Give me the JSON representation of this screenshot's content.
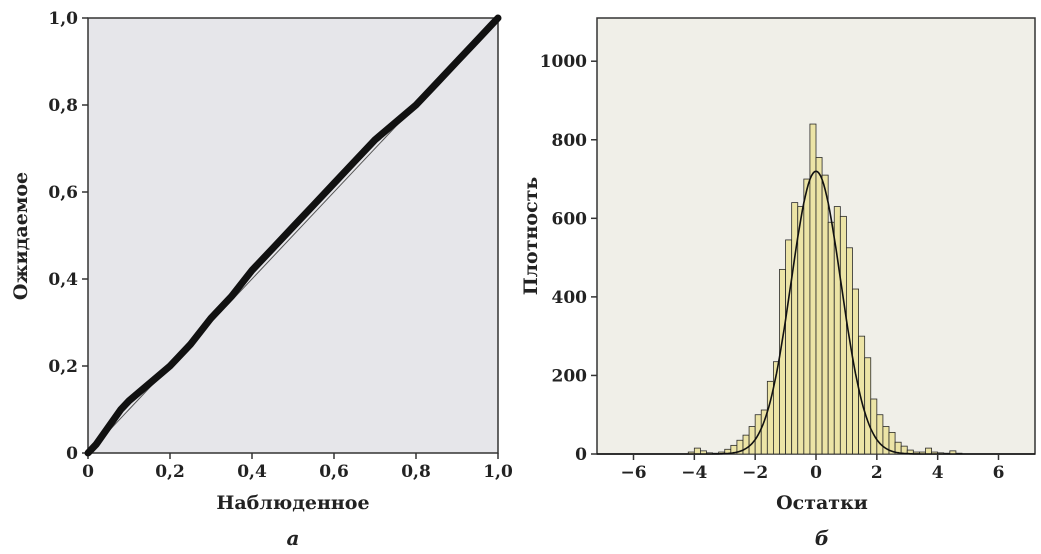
{
  "colors": {
    "plot_bg_left": "#e6e6ea",
    "plot_bg_right": "#f0efe8",
    "bar_fill": "#ece4a6",
    "bar_stroke": "#2a2a2a",
    "line": "#111111"
  },
  "chart_data": [
    {
      "type": "line",
      "panel_label": "а",
      "xlabel": "Наблюденное",
      "ylabel": "Ожидаемое",
      "xlim": [
        0,
        1
      ],
      "ylim": [
        0,
        1
      ],
      "xticks": [
        0,
        0.2,
        0.4,
        0.6,
        0.8,
        1.0
      ],
      "xtick_labels": [
        "0",
        "0,2",
        "0,4",
        "0,6",
        "0,8",
        "1,0"
      ],
      "yticks": [
        0,
        0.2,
        0.4,
        0.6,
        0.8,
        1.0
      ],
      "ytick_labels": [
        "0",
        "0,2",
        "0,4",
        "0,6",
        "0,8",
        "1,0"
      ],
      "series": [
        {
          "x": [
            0,
            0.02,
            0.05,
            0.08,
            0.1,
            0.15,
            0.2,
            0.25,
            0.3,
            0.35,
            0.4,
            0.45,
            0.5,
            0.55,
            0.6,
            0.65,
            0.7,
            0.75,
            0.8,
            0.85,
            0.9,
            0.95,
            0.98,
            1.0
          ],
          "y": [
            0,
            0.02,
            0.06,
            0.1,
            0.12,
            0.16,
            0.2,
            0.25,
            0.31,
            0.36,
            0.42,
            0.47,
            0.52,
            0.57,
            0.62,
            0.67,
            0.72,
            0.76,
            0.8,
            0.85,
            0.9,
            0.95,
            0.98,
            1.0
          ]
        },
        {
          "x": [
            0,
            1
          ],
          "y": [
            0,
            1
          ]
        }
      ]
    },
    {
      "type": "bar",
      "panel_label": "б",
      "xlabel": "Остатки",
      "ylabel": "Плотность",
      "xlim": [
        -7.2,
        7.2
      ],
      "ylim": [
        0,
        1110
      ],
      "xticks": [
        -6,
        -4,
        -2,
        0,
        2,
        4,
        6
      ],
      "xtick_labels": [
        "−6",
        "−4",
        "−2",
        "0",
        "2",
        "4",
        "6"
      ],
      "yticks": [
        0,
        200,
        400,
        600,
        800,
        1000
      ],
      "ytick_labels": [
        "0",
        "200",
        "400",
        "600",
        "800",
        "1000"
      ],
      "bin_width": 0.2,
      "bin_starts": [
        -4.2,
        -4.0,
        -3.8,
        -3.6,
        -3.4,
        -3.2,
        -3.0,
        -2.8,
        -2.6,
        -2.4,
        -2.2,
        -2.0,
        -1.8,
        -1.6,
        -1.4,
        -1.2,
        -1.0,
        -0.8,
        -0.6,
        -0.4,
        -0.2,
        0.0,
        0.2,
        0.4,
        0.6,
        0.8,
        1.0,
        1.2,
        1.4,
        1.6,
        1.8,
        2.0,
        2.2,
        2.4,
        2.6,
        2.8,
        3.0,
        3.2,
        3.4,
        3.6,
        3.8,
        4.0,
        4.2,
        4.4,
        4.6
      ],
      "values": [
        5,
        15,
        8,
        3,
        2,
        5,
        12,
        22,
        35,
        48,
        70,
        100,
        112,
        185,
        235,
        470,
        545,
        640,
        630,
        700,
        840,
        755,
        710,
        590,
        630,
        605,
        525,
        420,
        300,
        245,
        140,
        100,
        70,
        55,
        30,
        20,
        10,
        5,
        5,
        15,
        5,
        3,
        2,
        8,
        2
      ],
      "curve": {
        "type": "normal",
        "mean": 0.0,
        "sd": 0.82,
        "peak": 720
      }
    }
  ]
}
